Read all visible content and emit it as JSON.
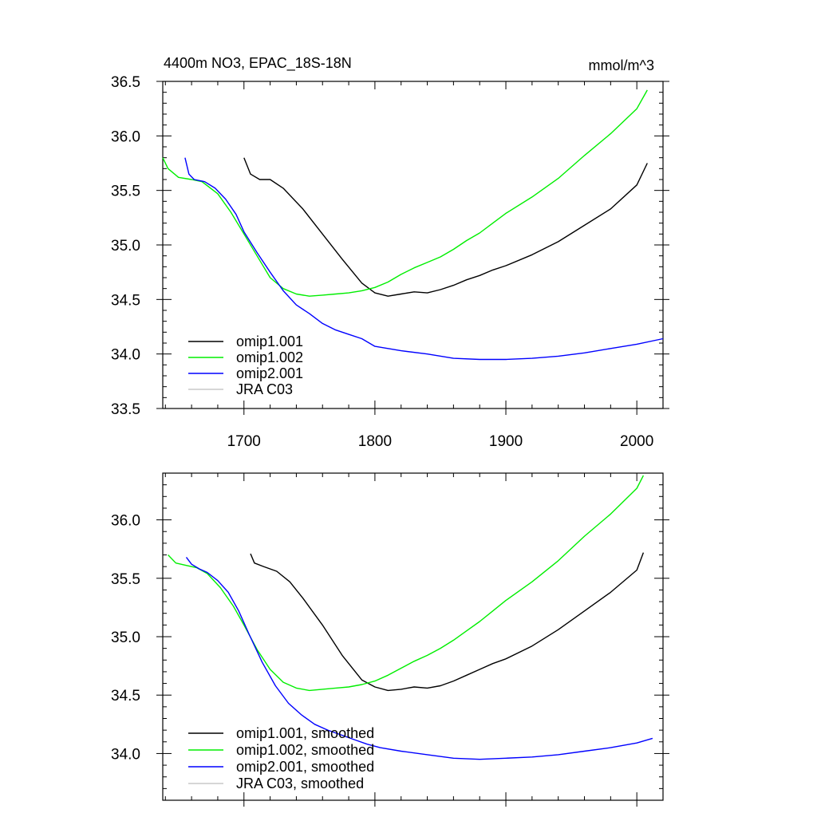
{
  "chart_data": [
    {
      "type": "line",
      "title": "4400m NO3, EPAC_18S-18N",
      "units": "mmol/m^3",
      "xlim": [
        1638,
        2020
      ],
      "ylim": [
        33.5,
        36.5
      ],
      "xticks": [
        1700,
        1800,
        1900,
        2000
      ],
      "xtick_labels": [
        "1700",
        "1800",
        "1900",
        "2000"
      ],
      "yticks": [
        33.5,
        34.0,
        34.5,
        35.0,
        35.5,
        36.0,
        36.5
      ],
      "ytick_labels": [
        "33.5",
        "34.0",
        "34.5",
        "35.0",
        "35.5",
        "36.0",
        "36.5"
      ],
      "grid": false,
      "legend_position": "bottom-left",
      "series": [
        {
          "name": "omip1.001",
          "color": "#000000",
          "x": [
            1700,
            1705,
            1712,
            1720,
            1730,
            1745,
            1760,
            1775,
            1790,
            1800,
            1810,
            1820,
            1830,
            1840,
            1850,
            1860,
            1870,
            1880,
            1890,
            1900,
            1920,
            1940,
            1960,
            1980,
            2000,
            2008
          ],
          "y": [
            35.8,
            35.65,
            35.6,
            35.6,
            35.52,
            35.33,
            35.1,
            34.87,
            34.65,
            34.56,
            34.53,
            34.55,
            34.57,
            34.56,
            34.59,
            34.63,
            34.68,
            34.72,
            34.77,
            34.81,
            34.91,
            35.03,
            35.18,
            35.33,
            35.55,
            35.75
          ]
        },
        {
          "name": "omip1.002",
          "color": "#00ee00",
          "x": [
            1638,
            1642,
            1650,
            1660,
            1668,
            1680,
            1690,
            1700,
            1710,
            1720,
            1730,
            1740,
            1750,
            1760,
            1770,
            1780,
            1790,
            1800,
            1810,
            1820,
            1830,
            1840,
            1850,
            1860,
            1870,
            1880,
            1890,
            1900,
            1920,
            1940,
            1960,
            1980,
            2000,
            2008
          ],
          "y": [
            35.8,
            35.7,
            35.62,
            35.6,
            35.58,
            35.47,
            35.3,
            35.1,
            34.9,
            34.7,
            34.6,
            34.55,
            34.53,
            34.54,
            34.55,
            34.56,
            34.58,
            34.61,
            34.66,
            34.73,
            34.79,
            34.84,
            34.89,
            34.96,
            35.04,
            35.11,
            35.2,
            35.29,
            35.44,
            35.61,
            35.82,
            36.02,
            36.25,
            36.42
          ]
        },
        {
          "name": "omip2.001",
          "color": "#0000ff",
          "x": [
            1655,
            1658,
            1662,
            1670,
            1678,
            1686,
            1694,
            1700,
            1710,
            1720,
            1730,
            1740,
            1750,
            1760,
            1770,
            1780,
            1790,
            1800,
            1820,
            1840,
            1860,
            1880,
            1900,
            1920,
            1940,
            1960,
            1980,
            2000,
            2020
          ],
          "y": [
            35.8,
            35.65,
            35.6,
            35.58,
            35.52,
            35.42,
            35.28,
            35.12,
            34.93,
            34.75,
            34.58,
            34.45,
            34.37,
            34.28,
            34.22,
            34.18,
            34.14,
            34.07,
            34.03,
            34.0,
            33.96,
            33.95,
            33.95,
            33.96,
            33.98,
            34.01,
            34.05,
            34.09,
            34.14
          ]
        },
        {
          "name": "JRA C03",
          "color": "#c8c8c8",
          "x": [],
          "y": []
        }
      ]
    },
    {
      "type": "line",
      "xlim": [
        1638,
        2020
      ],
      "ylim": [
        33.6,
        36.4
      ],
      "xticks": [
        1700,
        1800,
        1900,
        2000
      ],
      "yticks": [
        34.0,
        34.5,
        35.0,
        35.5,
        36.0
      ],
      "ytick_labels": [
        "34.0",
        "34.5",
        "35.0",
        "35.5",
        "36.0"
      ],
      "grid": false,
      "legend_position": "bottom-left",
      "series": [
        {
          "name": "omip1.001, smoothed",
          "color": "#000000",
          "x": [
            1705,
            1708,
            1715,
            1725,
            1735,
            1745,
            1760,
            1775,
            1790,
            1800,
            1810,
            1820,
            1830,
            1840,
            1850,
            1860,
            1870,
            1880,
            1890,
            1900,
            1920,
            1940,
            1960,
            1980,
            2000,
            2005
          ],
          "y": [
            35.71,
            35.63,
            35.6,
            35.56,
            35.47,
            35.33,
            35.1,
            34.84,
            34.63,
            34.57,
            34.54,
            34.55,
            34.57,
            34.56,
            34.58,
            34.62,
            34.67,
            34.72,
            34.77,
            34.81,
            34.92,
            35.06,
            35.22,
            35.38,
            35.57,
            35.72
          ]
        },
        {
          "name": "omip1.002, smoothed",
          "color": "#00ee00",
          "x": [
            1642,
            1648,
            1656,
            1664,
            1672,
            1682,
            1692,
            1700,
            1710,
            1720,
            1730,
            1740,
            1750,
            1760,
            1770,
            1780,
            1790,
            1800,
            1810,
            1820,
            1830,
            1840,
            1850,
            1860,
            1870,
            1880,
            1890,
            1900,
            1920,
            1940,
            1960,
            1980,
            2000,
            2005
          ],
          "y": [
            35.7,
            35.63,
            35.61,
            35.59,
            35.54,
            35.42,
            35.26,
            35.1,
            34.89,
            34.72,
            34.61,
            34.56,
            34.54,
            34.55,
            34.56,
            34.57,
            34.59,
            34.62,
            34.67,
            34.73,
            34.79,
            34.84,
            34.9,
            34.97,
            35.05,
            35.13,
            35.22,
            35.31,
            35.47,
            35.65,
            35.86,
            36.05,
            36.27,
            36.38
          ]
        },
        {
          "name": "omip2.001, smoothed",
          "color": "#0000ff",
          "x": [
            1656,
            1660,
            1666,
            1672,
            1680,
            1688,
            1696,
            1704,
            1714,
            1724,
            1734,
            1744,
            1754,
            1764,
            1774,
            1784,
            1794,
            1804,
            1820,
            1840,
            1860,
            1880,
            1900,
            1920,
            1940,
            1960,
            1980,
            2000,
            2012
          ],
          "y": [
            35.68,
            35.62,
            35.58,
            35.55,
            35.48,
            35.38,
            35.22,
            35.02,
            34.78,
            34.58,
            34.43,
            34.33,
            34.25,
            34.2,
            34.16,
            34.12,
            34.08,
            34.05,
            34.02,
            33.99,
            33.96,
            33.95,
            33.96,
            33.97,
            33.99,
            34.02,
            34.05,
            34.09,
            34.13
          ]
        },
        {
          "name": "JRA C03, smoothed",
          "color": "#c8c8c8",
          "x": [],
          "y": []
        }
      ]
    }
  ]
}
